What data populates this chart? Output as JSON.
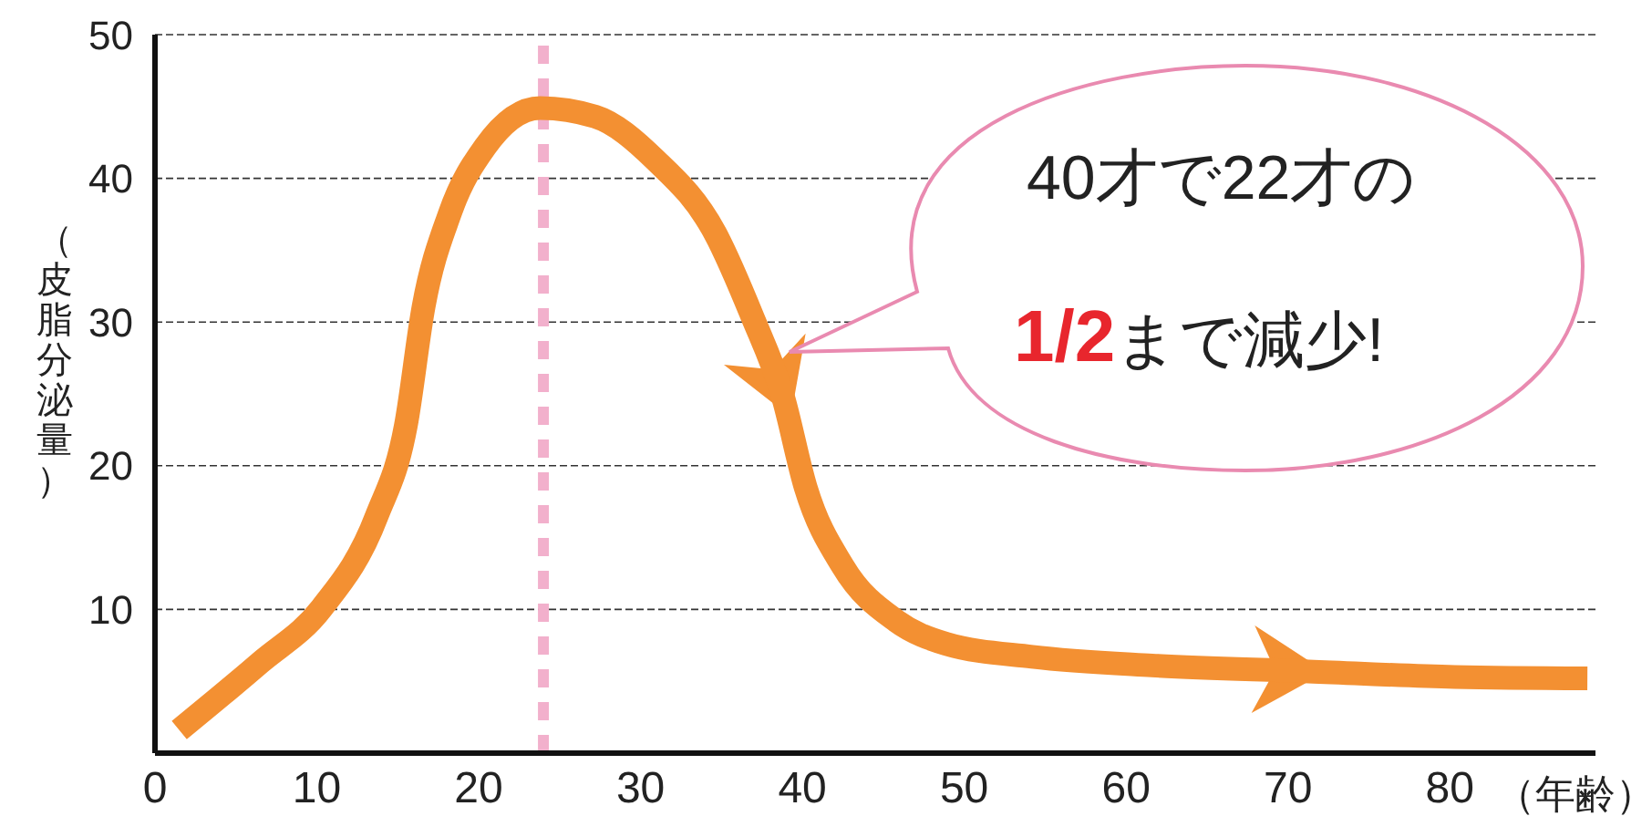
{
  "chart_data": {
    "type": "line",
    "ylabel": "（皮脂分泌量）",
    "xlabel": "（年齢）",
    "x": [
      1.5,
      6.5,
      10.3,
      13.7,
      15.5,
      16.6,
      18.2,
      20.4,
      23.8,
      27.2,
      30.9,
      34.6,
      36.9,
      38.8,
      40.2,
      42.5,
      45.8,
      48.9,
      54.2,
      61.6,
      71,
      80.3,
      88.5
    ],
    "series": [
      {
        "color": "#f39032",
        "values": [
          1.6,
          6.3,
          10.1,
          16.5,
          22.8,
          31.1,
          37.5,
          42.2,
          44.9,
          44.3,
          41.3,
          36.2,
          30.4,
          24.8,
          18.5,
          13,
          9.2,
          7.6,
          6.7,
          6.1,
          5.7,
          5.3,
          5.2
        ]
      }
    ],
    "xlim": [
      0,
      89
    ],
    "xticks": [
      0,
      10,
      20,
      30,
      40,
      50,
      60,
      70,
      80
    ],
    "ylim": [
      0,
      50
    ],
    "yticks": [
      10,
      20,
      30,
      40,
      50
    ],
    "grid": "y",
    "marker": "none",
    "line_style": "solid",
    "ref_lines": [
      {
        "axis": "x",
        "value": 24,
        "color": "#f2b0cc",
        "line_style": "dashed"
      }
    ],
    "annotations": [
      "40才で22才の",
      "1/2まで減少!"
    ]
  }
}
